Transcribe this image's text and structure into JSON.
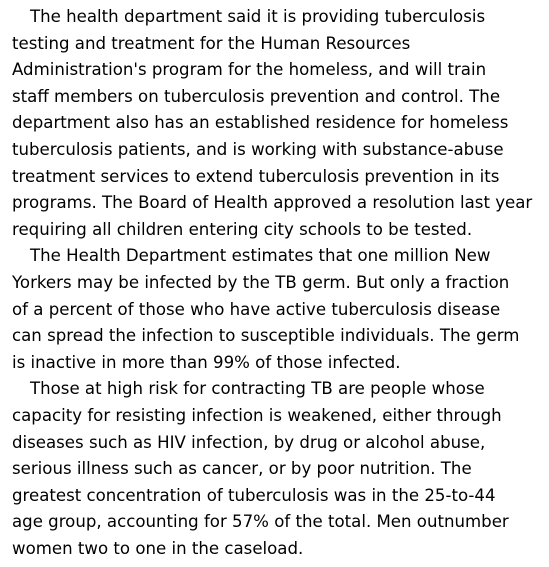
{
  "article": {
    "paragraphs": [
      {
        "lines": [
          "The health department said it is providing tuberculosis",
          "testing and treatment for the Human Resources",
          "Administration's program for the homeless, and will train",
          "staff members on tuberculosis prevention and control. The",
          "department also has an established residence for homeless",
          "tuberculosis patients, and is working with substance-abuse",
          "treatment services to extend tuberculosis prevention in its",
          "programs. The Board of Health approved a resolution last year",
          "requiring all children entering city schools to be tested."
        ]
      },
      {
        "lines": [
          "The Health Department estimates that one million New",
          "Yorkers may be infected by the TB germ. But only a fraction",
          "of a percent of those who have active tuberculosis disease",
          "can spread the infection to susceptible individuals. The germ",
          "is inactive in more than 99% of those infected."
        ]
      },
      {
        "lines": [
          "Those at high risk for contracting TB are people whose",
          "capacity for resisting infection is weakened, either through",
          "diseases such as HIV infection, by drug or alcohol abuse,",
          "serious illness such as cancer, or by poor nutrition. The",
          "greatest concentration of tuberculosis was in the 25-to-44",
          "age group, accounting for 57% of the total. Men outnumber",
          "women two to one in the caseload."
        ]
      }
    ]
  }
}
